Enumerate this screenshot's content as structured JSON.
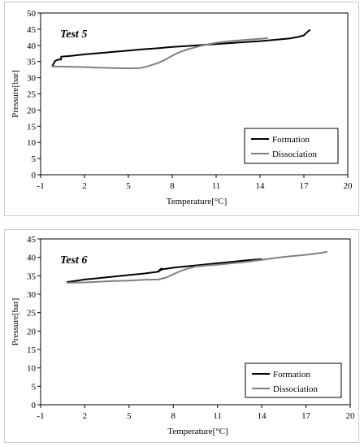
{
  "charts": {
    "chart_data": [
      {
        "type": "line",
        "title": "Test 5",
        "xlabel": "Temperature[°C]",
        "ylabel": "Pressure[bar]",
        "xlim": [
          -1,
          20
        ],
        "ylim": [
          0,
          50
        ],
        "xticks": [
          "-1",
          "2",
          "5",
          "8",
          "11",
          "14",
          "17",
          "20"
        ],
        "yticks": [
          "0",
          "5",
          "10",
          "15",
          "20",
          "25",
          "30",
          "35",
          "40",
          "45",
          "50"
        ],
        "legend_position": "bottom-right",
        "series": [
          {
            "name": "Formation",
            "color": "#000000",
            "x": [
              -0.2,
              -0.1,
              0.0,
              0.2,
              0.4,
              0.4,
              1.0,
              2.0,
              3.0,
              4.0,
              5.0,
              6.0,
              7.0,
              8.0,
              9.0,
              10.0,
              11.0,
              12.0,
              13.0,
              14.0,
              15.0,
              16.0,
              16.6,
              17.0,
              17.2,
              17.4
            ],
            "y": [
              33.5,
              34.5,
              35.2,
              35.6,
              35.6,
              36.5,
              36.7,
              37.2,
              37.6,
              38.0,
              38.4,
              38.8,
              39.1,
              39.5,
              39.8,
              40.1,
              40.4,
              40.7,
              41.0,
              41.3,
              41.7,
              42.1,
              42.6,
              43.1,
              44.0,
              44.7
            ]
          },
          {
            "name": "Dissociation",
            "color": "#808080",
            "x": [
              -0.2,
              1.0,
              2.0,
              3.0,
              4.0,
              5.0,
              5.8,
              6.3,
              7.0,
              7.5,
              8.0,
              8.5,
              9.0,
              10.0,
              11.0,
              12.0,
              13.0,
              14.0,
              14.5
            ],
            "y": [
              33.5,
              33.4,
              33.3,
              33.1,
              33.0,
              32.9,
              33.0,
              33.5,
              34.5,
              35.5,
              36.8,
              37.9,
              38.7,
              39.9,
              40.8,
              41.3,
              41.7,
              42.0,
              42.2
            ]
          }
        ]
      },
      {
        "type": "line",
        "title": "Test 6",
        "xlabel": "Temperature[°C]",
        "ylabel": "Pressure[bar]",
        "xlim": [
          -1,
          20
        ],
        "ylim": [
          0,
          45
        ],
        "xticks": [
          "-1",
          "2",
          "5",
          "8",
          "11",
          "14",
          "17",
          "20"
        ],
        "yticks": [
          "0",
          "5",
          "10",
          "15",
          "20",
          "25",
          "30",
          "35",
          "40",
          "45"
        ],
        "legend_position": "bottom-right",
        "series": [
          {
            "name": "Formation",
            "color": "#000000",
            "x": [
              0.8,
              1.5,
              2.0,
              3.0,
              4.0,
              5.0,
              6.0,
              7.0,
              7.2,
              7.0,
              7.3,
              8.0,
              9.0,
              10.0,
              11.0,
              12.0,
              13.0,
              14.0
            ],
            "y": [
              33.3,
              33.7,
              34.0,
              34.4,
              34.8,
              35.2,
              35.6,
              36.1,
              37.0,
              36.3,
              36.8,
              37.2,
              37.6,
              38.0,
              38.4,
              38.8,
              39.2,
              39.5
            ]
          },
          {
            "name": "Dissociation",
            "color": "#808080",
            "x": [
              0.8,
              2.0,
              3.0,
              4.0,
              5.0,
              6.0,
              7.0,
              7.5,
              8.0,
              8.5,
              9.0,
              9.5,
              10.0,
              11.0,
              12.0,
              13.0,
              14.0,
              15.0,
              16.0,
              17.0,
              18.0,
              18.4
            ],
            "y": [
              33.1,
              33.2,
              33.4,
              33.6,
              33.7,
              33.9,
              34.0,
              34.5,
              35.4,
              36.3,
              37.0,
              37.5,
              37.7,
              38.0,
              38.4,
              38.8,
              39.3,
              39.9,
              40.3,
              40.7,
              41.2,
              41.5
            ]
          }
        ]
      }
    ]
  }
}
